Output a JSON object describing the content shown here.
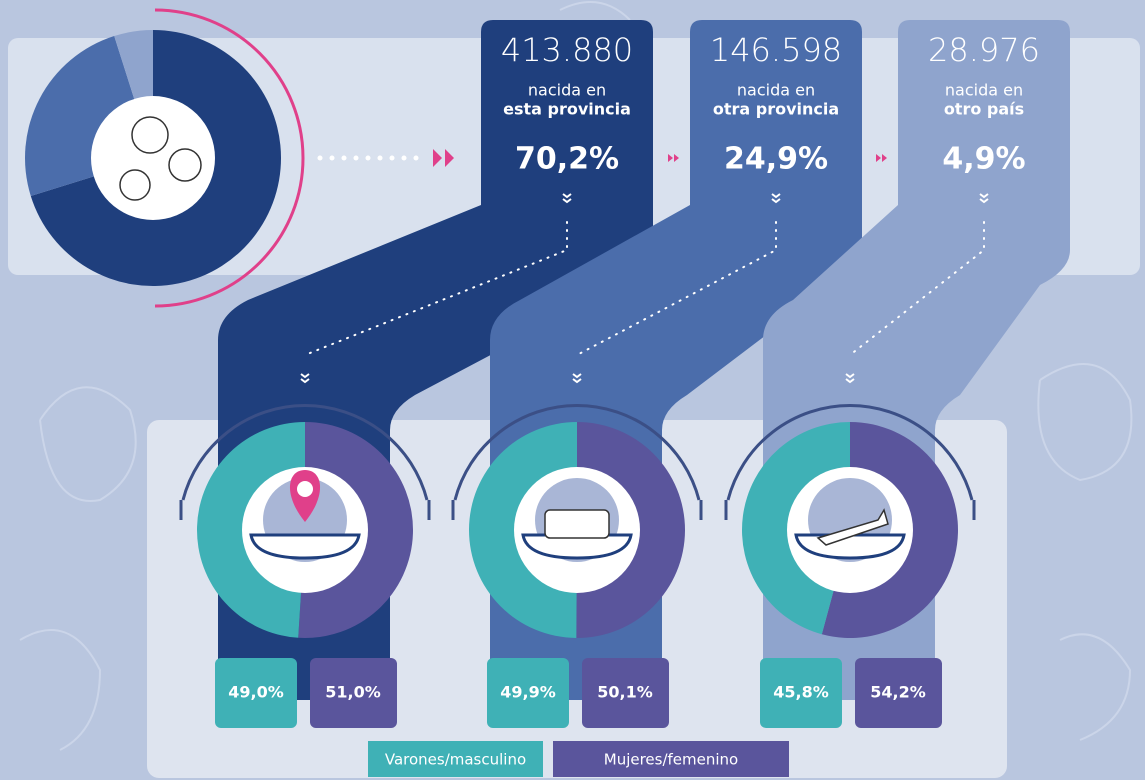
{
  "chart_data": [
    {
      "type": "pie",
      "categories": [
        "esta provincia",
        "otra provincia",
        "otro país"
      ],
      "category_prefix": "nacida en",
      "counts": [
        {
          "value": 413880,
          "label": "413.880"
        },
        {
          "value": 146598,
          "label": "146.598"
        },
        {
          "value": 28976,
          "label": "28.976"
        }
      ],
      "values": [
        70.2,
        24.9,
        4.9
      ],
      "value_labels": [
        "70,2%",
        "24,9%",
        "4,9%"
      ],
      "colors": [
        "#1f3f7d",
        "#4b6dab",
        "#8fa4cd"
      ]
    },
    {
      "type": "donut",
      "series": [
        {
          "name": "Varones/masculino",
          "color": "#3fb1b6",
          "values": [
            49.0,
            49.9,
            45.8
          ],
          "value_labels": [
            "49,0%",
            "49,9%",
            "45,8%"
          ]
        },
        {
          "name": "Mujeres/femenino",
          "color": "#5a559c",
          "values": [
            51.0,
            50.1,
            54.2
          ],
          "value_labels": [
            "51,0%",
            "50,1%",
            "54,2%"
          ]
        }
      ]
    }
  ]
}
